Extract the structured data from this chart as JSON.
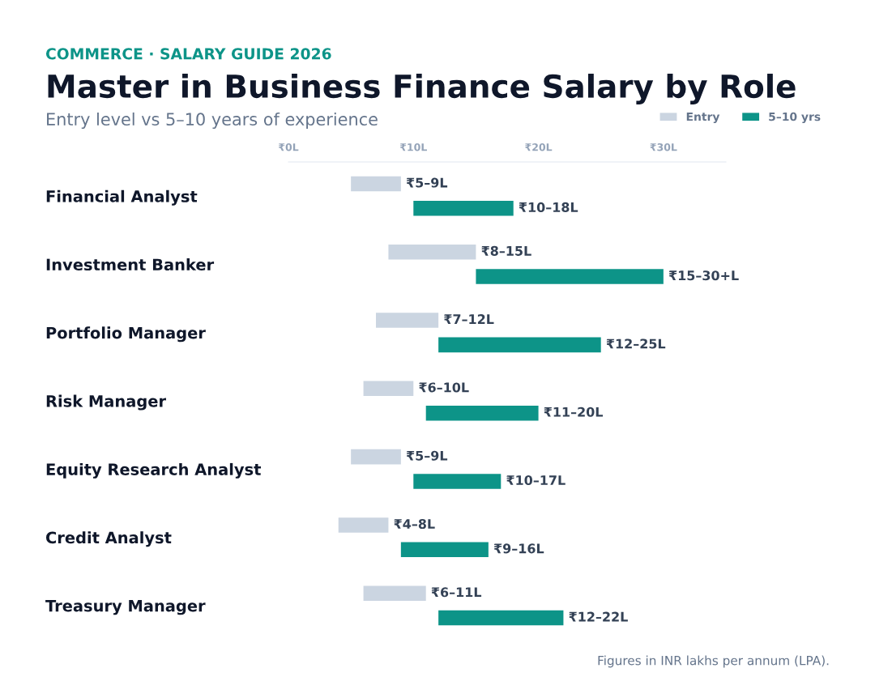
{
  "chart_data": {
    "type": "bar",
    "orientation": "horizontal",
    "title": "Master in Business Finance Salary by Role",
    "subtitle": "Entry level vs 5–10 years of experience",
    "annotations": [
      "COMMERCE · SALARY GUIDE 2026",
      "Figures in INR lakhs per annum (LPA)."
    ],
    "categories": [
      "Financial Analyst",
      "Investment Banker",
      "Portfolio Manager",
      "Risk Manager",
      "Equity Research Analyst",
      "Credit Analyst",
      "Treasury Manager"
    ],
    "series": [
      {
        "name": "Entry",
        "color": "#cbd5e1",
        "base": [
          5,
          8,
          7,
          6,
          5,
          4,
          6
        ],
        "values": [
          4,
          7,
          5,
          4,
          4,
          4,
          5
        ],
        "value_labels": [
          "₹5–9L",
          "₹8–15L",
          "₹7–12L",
          "₹6–10L",
          "₹5–9L",
          "₹4–8L",
          "₹6–11L"
        ]
      },
      {
        "name": "5–10 yrs",
        "color": "#0d9488",
        "base": [
          10,
          15,
          12,
          11,
          10,
          9,
          12
        ],
        "values": [
          8,
          15,
          13,
          9,
          7,
          7,
          10
        ],
        "value_labels": [
          "₹10–18L",
          "₹15–30+L",
          "₹12–25L",
          "₹11–20L",
          "₹10–17L",
          "₹9–16L",
          "₹12–22L"
        ]
      }
    ],
    "xlim": [
      0,
      35
    ],
    "xticks": [
      {
        "value": 0,
        "label": "₹0L"
      },
      {
        "value": 10,
        "label": "₹10L"
      },
      {
        "value": 20,
        "label": "₹20L"
      },
      {
        "value": 30,
        "label": "₹30L"
      }
    ],
    "legend": "top right",
    "grid": false
  }
}
